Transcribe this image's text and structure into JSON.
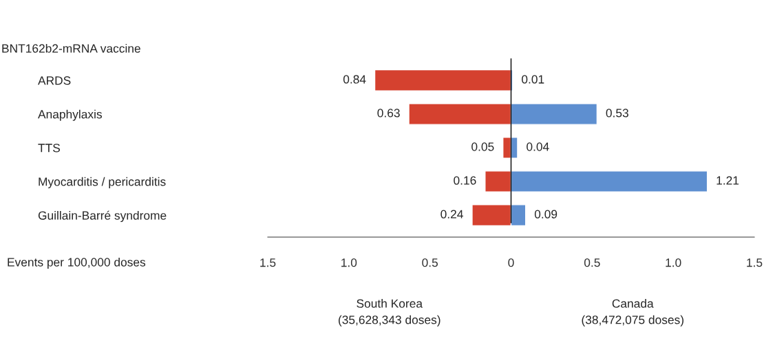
{
  "chart_data": {
    "type": "bar",
    "orientation": "horizontal",
    "title": "BNT162b2-mRNA vaccine",
    "xlabel": "Events per 100,000 doses",
    "categories": [
      "ARDS",
      "Anaphylaxis",
      "TTS",
      "Myocarditis / pericarditis",
      "Guillain-Barré syndrome"
    ],
    "series": [
      {
        "color": "#d5412f",
        "values": [
          0.84,
          0.63,
          0.05,
          0.16,
          0.24
        ],
        "base": [
          -0.84,
          -0.63,
          -0.05,
          -0.16,
          -0.24
        ]
      },
      {
        "color": "#5e8fd0",
        "values": [
          0.01,
          0.53,
          0.04,
          1.21,
          0.09
        ]
      }
    ],
    "data_labels": true,
    "xlim": [
      -1.5,
      1.5
    ],
    "xticks": [
      {
        "value": -1.5,
        "label": "1.5"
      },
      {
        "value": -1.0,
        "label": "1.0"
      },
      {
        "value": -0.5,
        "label": "0.5"
      },
      0,
      0.5,
      {
        "value": 1.0,
        "label": "1.0"
      },
      1.5
    ],
    "ref_lines": [
      {
        "axis": "x",
        "value": 0,
        "color": "#000000"
      }
    ],
    "annotations": [
      "South Korea\n(35,628,343 doses)",
      "Canada\n(38,472,075 doses)"
    ]
  }
}
